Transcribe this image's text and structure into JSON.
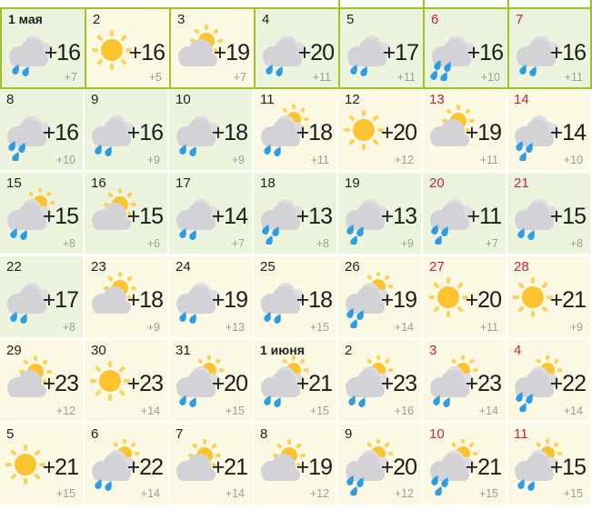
{
  "calendar": {
    "title": "month-weather-calendar",
    "language": "ru",
    "colors": {
      "cell_green": "#edf4de",
      "cell_yellow": "#fbf9e3",
      "border_green": "#9ec42c",
      "day_red": "#c22545",
      "day_black": "#1f1f1f",
      "temp_high_black": "#1c1c1c",
      "temp_low_gray": "#9c9c9c",
      "drop_blue": "#2d9ce0",
      "cloud_gray": "#d2d2d7",
      "cloud_back_gray": "#dcdce1",
      "sun_core": "#fbc32d",
      "sun_rays": "#fdd158"
    },
    "top_partial_cells": 3,
    "days": [
      {
        "label": "1 мая",
        "bold": true,
        "red": false,
        "icon": "cloud-rain",
        "drops": 2,
        "high": "+16",
        "low": "+7",
        "bg": "green"
      },
      {
        "label": "2",
        "bold": false,
        "red": false,
        "icon": "sun",
        "drops": 0,
        "high": "+16",
        "low": "+5",
        "bg": "yellow"
      },
      {
        "label": "3",
        "bold": false,
        "red": false,
        "icon": "sun-cloud",
        "drops": 0,
        "high": "+19",
        "low": "+7",
        "bg": "yellow"
      },
      {
        "label": "4",
        "bold": false,
        "red": false,
        "icon": "cloud-rain",
        "drops": 2,
        "high": "+20",
        "low": "+11",
        "bg": "green"
      },
      {
        "label": "5",
        "bold": false,
        "red": false,
        "icon": "cloud-rain",
        "drops": 2,
        "high": "+17",
        "low": "+11",
        "bg": "green"
      },
      {
        "label": "6",
        "bold": false,
        "red": true,
        "icon": "cloud-rain",
        "drops": 4,
        "high": "+16",
        "low": "+10",
        "bg": "green"
      },
      {
        "label": "7",
        "bold": false,
        "red": true,
        "icon": "cloud-rain",
        "drops": 2,
        "high": "+16",
        "low": "+11",
        "bg": "green"
      },
      {
        "label": "8",
        "bold": false,
        "red": false,
        "icon": "cloud-rain",
        "drops": 3,
        "high": "+16",
        "low": "+10",
        "bg": "green"
      },
      {
        "label": "9",
        "bold": false,
        "red": false,
        "icon": "cloud-rain",
        "drops": 2,
        "high": "+16",
        "low": "+9",
        "bg": "green"
      },
      {
        "label": "10",
        "bold": false,
        "red": false,
        "icon": "cloud-rain",
        "drops": 2,
        "high": "+18",
        "low": "+9",
        "bg": "green"
      },
      {
        "label": "11",
        "bold": false,
        "red": false,
        "icon": "sun-cloud-rain",
        "drops": 2,
        "high": "+18",
        "low": "+11",
        "bg": "yellow"
      },
      {
        "label": "12",
        "bold": false,
        "red": false,
        "icon": "sun",
        "drops": 0,
        "high": "+20",
        "low": "+12",
        "bg": "yellow"
      },
      {
        "label": "13",
        "bold": false,
        "red": true,
        "icon": "sun-cloud",
        "drops": 0,
        "high": "+19",
        "low": "+11",
        "bg": "yellow"
      },
      {
        "label": "14",
        "bold": false,
        "red": true,
        "icon": "cloud-rain",
        "drops": 3,
        "high": "+14",
        "low": "+10",
        "bg": "yellow"
      },
      {
        "label": "15",
        "bold": false,
        "red": false,
        "icon": "sun-cloud-rain",
        "drops": 2,
        "high": "+15",
        "low": "+8",
        "bg": "green"
      },
      {
        "label": "16",
        "bold": false,
        "red": false,
        "icon": "sun-cloud",
        "drops": 0,
        "high": "+15",
        "low": "+6",
        "bg": "green"
      },
      {
        "label": "17",
        "bold": false,
        "red": false,
        "icon": "cloud-rain",
        "drops": 2,
        "high": "+14",
        "low": "+7",
        "bg": "green"
      },
      {
        "label": "18",
        "bold": false,
        "red": false,
        "icon": "cloud-rain",
        "drops": 3,
        "high": "+13",
        "low": "+8",
        "bg": "green"
      },
      {
        "label": "19",
        "bold": false,
        "red": false,
        "icon": "cloud-rain",
        "drops": 3,
        "high": "+13",
        "low": "+9",
        "bg": "green"
      },
      {
        "label": "20",
        "bold": false,
        "red": true,
        "icon": "cloud-rain",
        "drops": 3,
        "high": "+11",
        "low": "+7",
        "bg": "green"
      },
      {
        "label": "21",
        "bold": false,
        "red": true,
        "icon": "cloud-rain",
        "drops": 2,
        "high": "+15",
        "low": "+8",
        "bg": "green"
      },
      {
        "label": "22",
        "bold": false,
        "red": false,
        "icon": "cloud-rain",
        "drops": 2,
        "high": "+17",
        "low": "+8",
        "bg": "green"
      },
      {
        "label": "23",
        "bold": false,
        "red": false,
        "icon": "sun-cloud",
        "drops": 0,
        "high": "+18",
        "low": "+9",
        "bg": "yellow"
      },
      {
        "label": "24",
        "bold": false,
        "red": false,
        "icon": "cloud-rain",
        "drops": 2,
        "high": "+19",
        "low": "+13",
        "bg": "yellow"
      },
      {
        "label": "25",
        "bold": false,
        "red": false,
        "icon": "cloud-rain",
        "drops": 2,
        "high": "+18",
        "low": "+15",
        "bg": "yellow"
      },
      {
        "label": "26",
        "bold": false,
        "red": false,
        "icon": "sun-cloud-rain",
        "drops": 3,
        "high": "+19",
        "low": "+14",
        "bg": "yellow"
      },
      {
        "label": "27",
        "bold": false,
        "red": true,
        "icon": "sun",
        "drops": 0,
        "high": "+20",
        "low": "+11",
        "bg": "yellow"
      },
      {
        "label": "28",
        "bold": false,
        "red": true,
        "icon": "sun",
        "drops": 0,
        "high": "+21",
        "low": "+9",
        "bg": "yellow"
      },
      {
        "label": "29",
        "bold": false,
        "red": false,
        "icon": "sun-cloud",
        "drops": 0,
        "high": "+23",
        "low": "+12",
        "bg": "yellow"
      },
      {
        "label": "30",
        "bold": false,
        "red": false,
        "icon": "sun",
        "drops": 0,
        "high": "+23",
        "low": "+14",
        "bg": "yellow"
      },
      {
        "label": "31",
        "bold": false,
        "red": false,
        "icon": "sun-cloud-rain",
        "drops": 2,
        "high": "+20",
        "low": "+15",
        "bg": "yellow"
      },
      {
        "label": "1 июня",
        "bold": true,
        "red": false,
        "icon": "sun-cloud-rain",
        "drops": 2,
        "high": "+21",
        "low": "+15",
        "bg": "yellow"
      },
      {
        "label": "2",
        "bold": false,
        "red": false,
        "icon": "sun-cloud-rain",
        "drops": 2,
        "high": "+23",
        "low": "+16",
        "bg": "yellow"
      },
      {
        "label": "3",
        "bold": false,
        "red": true,
        "icon": "sun-cloud-rain",
        "drops": 2,
        "high": "+23",
        "low": "+14",
        "bg": "yellow"
      },
      {
        "label": "4",
        "bold": false,
        "red": true,
        "icon": "sun-cloud-rain",
        "drops": 3,
        "high": "+22",
        "low": "+14",
        "bg": "yellow"
      },
      {
        "label": "5",
        "bold": false,
        "red": false,
        "icon": "sun",
        "drops": 0,
        "high": "+21",
        "low": "+15",
        "bg": "yellow"
      },
      {
        "label": "6",
        "bold": false,
        "red": false,
        "icon": "sun-cloud-rain",
        "drops": 2,
        "high": "+22",
        "low": "+14",
        "bg": "yellow"
      },
      {
        "label": "7",
        "bold": false,
        "red": false,
        "icon": "sun-cloud",
        "drops": 0,
        "high": "+21",
        "low": "+14",
        "bg": "yellow"
      },
      {
        "label": "8",
        "bold": false,
        "red": false,
        "icon": "sun-cloud",
        "drops": 0,
        "high": "+19",
        "low": "+12",
        "bg": "yellow"
      },
      {
        "label": "9",
        "bold": false,
        "red": false,
        "icon": "sun-cloud-rain",
        "drops": 3,
        "high": "+20",
        "low": "+12",
        "bg": "yellow"
      },
      {
        "label": "10",
        "bold": false,
        "red": true,
        "icon": "sun-cloud-rain",
        "drops": 3,
        "high": "+21",
        "low": "+15",
        "bg": "yellow"
      },
      {
        "label": "11",
        "bold": false,
        "red": true,
        "icon": "sun-cloud-rain",
        "drops": 2,
        "high": "+15",
        "low": "+15",
        "bg": "yellow"
      }
    ]
  }
}
